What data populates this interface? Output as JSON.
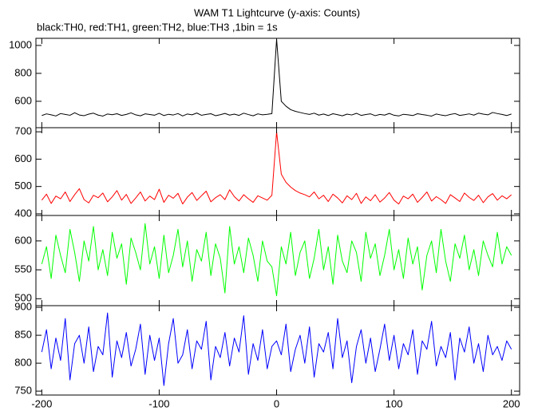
{
  "chart_data": {
    "type": "line",
    "title": "WAM T1 Lightcurve (y-axis: Counts)",
    "subtitle": "black:TH0, red:TH1, green:TH2, blue:TH3 ,1bin = 1s",
    "xlim": [
      -205,
      207
    ],
    "xticks": [
      -200,
      -100,
      0,
      100,
      200
    ],
    "x": [
      -200,
      -196,
      -192,
      -188,
      -184,
      -180,
      -176,
      -172,
      -168,
      -164,
      -160,
      -156,
      -152,
      -148,
      -144,
      -140,
      -136,
      -132,
      -128,
      -124,
      -120,
      -116,
      -112,
      -108,
      -104,
      -100,
      -96,
      -92,
      -88,
      -84,
      -80,
      -76,
      -72,
      -68,
      -64,
      -60,
      -56,
      -52,
      -48,
      -44,
      -40,
      -36,
      -32,
      -28,
      -24,
      -20,
      -16,
      -12,
      -8,
      -4,
      0,
      4,
      8,
      12,
      16,
      20,
      24,
      28,
      32,
      36,
      40,
      44,
      48,
      52,
      56,
      60,
      64,
      68,
      72,
      76,
      80,
      84,
      88,
      92,
      96,
      100,
      104,
      108,
      112,
      116,
      120,
      124,
      128,
      132,
      136,
      140,
      144,
      148,
      152,
      156,
      160,
      164,
      168,
      172,
      176,
      180,
      184,
      188,
      192,
      196,
      200
    ],
    "series": [
      {
        "color": "#000000",
        "ylim": [
          411,
          1051
        ],
        "yticks": [
          600,
          800,
          1000
        ],
        "values": [
          498,
          510,
          503,
          495,
          512,
          506,
          500,
          518,
          502,
          497,
          508,
          515,
          501,
          494,
          509,
          504,
          511,
          499,
          506,
          517,
          503,
          496,
          510,
          505,
          500,
          514,
          498,
          507,
          502,
          512,
          495,
          509,
          503,
          516,
          500,
          506,
          511,
          497,
          504,
          513,
          501,
          508,
          499,
          515,
          505,
          496,
          510,
          503,
          507,
          512,
          1045,
          600,
          565,
          540,
          528,
          520,
          512,
          506,
          515,
          501,
          509,
          498,
          511,
          504,
          496,
          508,
          502,
          514,
          499,
          505,
          510,
          497,
          506,
          501,
          513,
          500,
          495,
          507,
          503,
          498,
          511,
          505,
          500,
          494,
          509,
          502,
          497,
          506,
          512,
          499,
          504,
          510,
          501,
          515,
          508,
          503,
          520,
          512,
          506,
          498,
          509
        ]
      },
      {
        "color": "#ff0000",
        "ylim": [
          394,
          715
        ],
        "yticks": [
          400,
          500,
          600,
          700
        ],
        "values": [
          450,
          472,
          438,
          465,
          455,
          480,
          445,
          470,
          492,
          452,
          440,
          468,
          459,
          476,
          444,
          462,
          485,
          450,
          471,
          438,
          458,
          480,
          447,
          465,
          452,
          490,
          442,
          468,
          457,
          475,
          436,
          461,
          478,
          449,
          466,
          483,
          444,
          459,
          470,
          452,
          488,
          463,
          447,
          470,
          455,
          442,
          466,
          458,
          450,
          468,
          700,
          545,
          515,
          498,
          485,
          476,
          470,
          462,
          480,
          455,
          468,
          445,
          472,
          458,
          440,
          466,
          452,
          475,
          438,
          462,
          448,
          470,
          443,
          458,
          478,
          450,
          436,
          465,
          455,
          472,
          442,
          460,
          480,
          447,
          463,
          452,
          438,
          470,
          458,
          445,
          476,
          460,
          449,
          468,
          441,
          462,
          474,
          450,
          466,
          455,
          470
        ]
      },
      {
        "color": "#00ff00",
        "ylim": [
          488,
          644
        ],
        "yticks": [
          500,
          550,
          600
        ],
        "values": [
          560,
          590,
          535,
          610,
          575,
          545,
          620,
          580,
          530,
          600,
          565,
          625,
          550,
          585,
          540,
          615,
          570,
          595,
          525,
          605,
          580,
          550,
          630,
          560,
          590,
          535,
          610,
          545,
          575,
          620,
          555,
          600,
          530,
          585,
          565,
          615,
          540,
          595,
          570,
          510,
          625,
          560,
          590,
          545,
          605,
          575,
          530,
          600,
          565,
          555,
          505,
          590,
          560,
          615,
          540,
          580,
          600,
          535,
          570,
          620,
          550,
          590,
          525,
          610,
          565,
          545,
          600,
          580,
          530,
          615,
          570,
          595,
          540,
          575,
          620,
          550,
          585,
          535,
          605,
          560,
          590,
          515,
          575,
          600,
          545,
          620,
          565,
          530,
          595,
          570,
          610,
          550,
          585,
          540,
          600,
          575,
          555,
          615,
          560,
          590,
          575
        ]
      },
      {
        "color": "#0000ff",
        "ylim": [
          743,
          903
        ],
        "yticks": [
          750,
          800,
          850,
          900
        ],
        "values": [
          820,
          860,
          790,
          845,
          805,
          880,
          770,
          835,
          850,
          800,
          865,
          785,
          830,
          815,
          890,
          775,
          840,
          810,
          855,
          795,
          825,
          870,
          780,
          850,
          805,
          845,
          760,
          835,
          880,
          800,
          815,
          860,
          790,
          840,
          825,
          875,
          770,
          830,
          810,
          855,
          795,
          845,
          820,
          885,
          780,
          835,
          805,
          860,
          790,
          830,
          840,
          815,
          870,
          785,
          825,
          850,
          800,
          865,
          775,
          835,
          820,
          855,
          790,
          880,
          810,
          840,
          765,
          830,
          860,
          800,
          845,
          785,
          825,
          870,
          805,
          850,
          790,
          835,
          815,
          860,
          780,
          840,
          825,
          875,
          795,
          830,
          810,
          855,
          770,
          845,
          820,
          865,
          800,
          835,
          785,
          850,
          815,
          830,
          805,
          840,
          825
        ]
      }
    ]
  }
}
